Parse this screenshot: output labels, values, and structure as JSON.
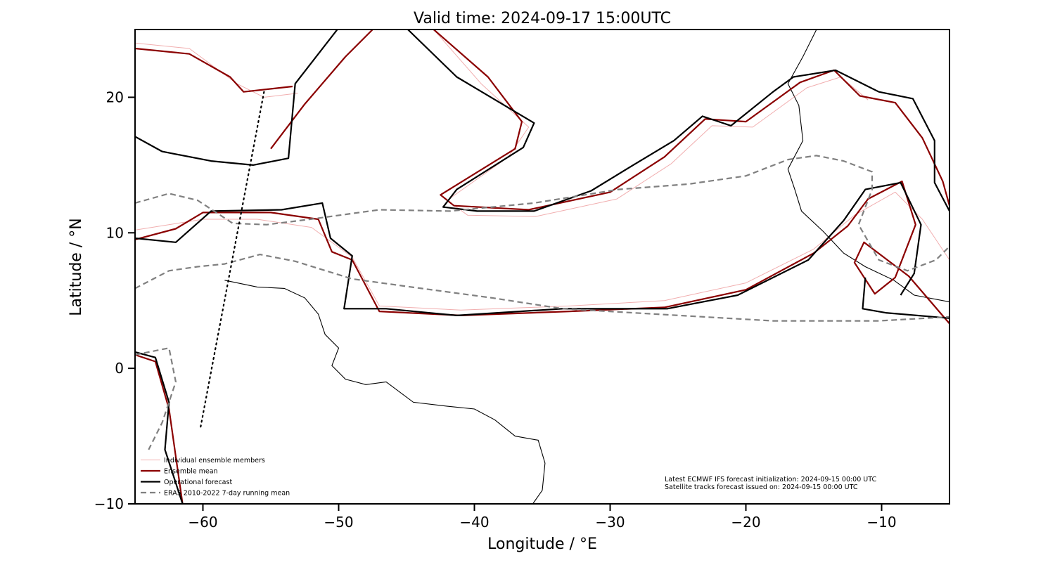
{
  "chart_data": {
    "type": "line",
    "title": "Valid time: 2024-09-17 15:00UTC",
    "x_label": "Longitude / °E",
    "y_label": "Latitude / °N",
    "xlim": [
      -65,
      -5
    ],
    "ylim": [
      -10,
      25
    ],
    "xticks": [
      {
        "value": -60,
        "label": "−60"
      },
      {
        "value": -50,
        "label": "−50"
      },
      {
        "value": -40,
        "label": "−40"
      },
      {
        "value": -30,
        "label": "−30"
      },
      {
        "value": -20,
        "label": "−20"
      },
      {
        "value": -10,
        "label": "−10"
      }
    ],
    "yticks": [
      {
        "value": -10,
        "label": "−10"
      },
      0,
      10,
      20
    ],
    "legend": "lower left",
    "series": [
      {
        "name": "Individual ensemble members",
        "color": "#e8787a",
        "dash": "solid",
        "segments": [
          {
            "x": [
              -65,
              -60,
              -56,
              -52,
              -49,
              -47,
              -41,
              -33,
              -26,
              -20,
              -15,
              -12,
              -9,
              -7,
              -5
            ],
            "y": [
              10.2,
              11.0,
              11.0,
              10.4,
              8.2,
              4.6,
              4.3,
              4.6,
              5.0,
              6.3,
              8.8,
              11.3,
              13.0,
              11.0,
              8.0
            ]
          },
          {
            "x": [
              -43,
              -39.5,
              -36,
              -37.5,
              -42,
              -40.5,
              -35.5,
              -29.5,
              -25.5,
              -22.5,
              -19.5,
              -15.5,
              -13,
              -11
            ],
            "y": [
              25,
              21.0,
              17.8,
              15.6,
              12.4,
              11.3,
              11.2,
              12.5,
              15.1,
              17.9,
              17.8,
              20.7,
              21.5,
              19.8
            ]
          },
          {
            "x": [
              -65,
              -61,
              -57.5,
              -55.5,
              -53
            ],
            "y": [
              24.0,
              23.6,
              21.0,
              20.0,
              20.3
            ]
          }
        ]
      },
      {
        "name": "Ensemble mean",
        "color": "#8b0000",
        "dash": "solid",
        "segments": [
          {
            "x": [
              -65,
              -61,
              -58,
              -57,
              -53.4
            ],
            "y": [
              23.6,
              23.2,
              21.5,
              20.4,
              20.8
            ]
          },
          {
            "x": [
              -55,
              -52.5,
              -49.5,
              -47.5
            ],
            "y": [
              16.2,
              19.5,
              23.0,
              25
            ]
          },
          {
            "x": [
              -43,
              -39,
              -36.5,
              -37,
              -42.5,
              -41.5,
              -36,
              -30,
              -26,
              -23,
              -20,
              -16,
              -13.5,
              -11.6,
              -9,
              -7,
              -5.5,
              -5
            ],
            "y": [
              25,
              21.5,
              18.2,
              16.2,
              12.8,
              12.0,
              11.7,
              13.0,
              15.6,
              18.4,
              18.2,
              21.1,
              22.0,
              20.1,
              19.6,
              17,
              13.8,
              12
            ]
          },
          {
            "x": [
              -65,
              -62,
              -60,
              -55,
              -51.5,
              -50.5,
              -49,
              -47,
              -41,
              -33,
              -26,
              -20,
              -15,
              -12.5,
              -11,
              -8.5,
              -7.5,
              -9,
              -10.5,
              -12,
              -11.3,
              -8,
              -5
            ],
            "y": [
              9.5,
              10.3,
              11.5,
              11.5,
              11.0,
              8.6,
              8.0,
              4.2,
              3.9,
              4.2,
              4.5,
              5.8,
              8.5,
              10.5,
              12.5,
              13.8,
              10.6,
              6.7,
              5.5,
              7.8,
              9.3,
              6.8,
              3.3
            ]
          },
          {
            "x": [
              -65,
              -63.5,
              -62.5,
              -62,
              -61.5
            ],
            "y": [
              1.0,
              0.5,
              -3.0,
              -6.5,
              -10
            ]
          }
        ]
      },
      {
        "name": "Operational forecast",
        "color": "#000000",
        "dash": "solid",
        "segments": [
          {
            "x": [
              -65,
              -63.0,
              -59.4,
              -56.3,
              -53.7,
              -53.2,
              -50.1
            ],
            "y": [
              17.1,
              16.0,
              15.3,
              15.0,
              15.5,
              21.0,
              25
            ]
          },
          {
            "x": [
              -44.9,
              -41.3,
              -35.6,
              -36.4,
              -41.3,
              -42.3,
              -39.8,
              -35.6,
              -31.4,
              -28.3,
              -25.3,
              -23.2,
              -21.1,
              -18.0,
              -16.5,
              -13.4,
              -10.2,
              -7.7,
              -6.1,
              -6.1,
              -5
            ],
            "y": [
              25,
              21.5,
              18.1,
              16.3,
              13.2,
              11.9,
              11.6,
              11.6,
              13.1,
              15.0,
              16.8,
              18.6,
              17.9,
              20.4,
              21.5,
              22.0,
              20.4,
              19.9,
              16.8,
              13.7,
              11.6
            ]
          },
          {
            "x": [
              -65,
              -62.0,
              -59.4,
              -54.2,
              -51.2,
              -50.6,
              -49.0,
              -49.6,
              -46.5,
              -41.3,
              -33.5,
              -25.8,
              -20.6,
              -15.4,
              -12.8,
              -11.2,
              -8.6,
              -7.1,
              -7.6,
              -8.6
            ],
            "y": [
              9.6,
              9.3,
              11.6,
              11.7,
              12.2,
              9.6,
              8.3,
              4.4,
              4.4,
              3.9,
              4.4,
              4.4,
              5.4,
              8.0,
              10.9,
              13.2,
              13.7,
              10.6,
              7.0,
              5.4
            ]
          },
          {
            "x": [
              -11.2,
              -11.4,
              -9.7,
              -5
            ],
            "y": [
              6.7,
              4.4,
              4.1,
              3.7
            ]
          },
          {
            "x": [
              -65,
              -63.5,
              -62.5,
              -62.8,
              -61.5
            ],
            "y": [
              1.2,
              0.8,
              -2.5,
              -6.0,
              -10
            ]
          }
        ]
      },
      {
        "name": "ERA5 2010-2022 7-day running mean",
        "color": "#808080",
        "dash": "dashed",
        "segments": [
          {
            "x": [
              -65,
              -62.5,
              -60.4,
              -57.8,
              -55.3,
              -52.1,
              -47.0,
              -41.8,
              -35.6,
              -29.4,
              -24.2,
              -20.0,
              -16.9,
              -14.8,
              -12.8,
              -10.7,
              -10.7,
              -11.7,
              -10.2,
              -8.1,
              -6.0,
              -5
            ],
            "y": [
              12.2,
              12.9,
              12.4,
              10.7,
              10.6,
              11.0,
              11.7,
              11.6,
              12.2,
              13.2,
              13.6,
              14.2,
              15.4,
              15.7,
              15.3,
              14.5,
              13.2,
              10.6,
              8.0,
              7.2,
              8.0,
              9.0
            ]
          },
          {
            "x": [
              -65,
              -62.5,
              -60.4,
              -58.4,
              -55.8,
              -53.2,
              -49.0,
              -43.9,
              -38.7,
              -33.5,
              -28.3,
              -23.1,
              -18.0,
              -10.2,
              -5
            ],
            "y": [
              5.9,
              7.2,
              7.5,
              7.7,
              8.4,
              7.9,
              6.6,
              5.9,
              5.2,
              4.4,
              4.1,
              3.8,
              3.5,
              3.5,
              3.8
            ]
          },
          {
            "x": [
              -65,
              -62.5,
              -62.0,
              -63.0,
              -64.0
            ],
            "y": [
              1.0,
              1.5,
              -1.0,
              -4.0,
              -6.0
            ]
          }
        ]
      }
    ],
    "track": {
      "color": "#000000",
      "x": [
        -55.5,
        -60.2
      ],
      "y": [
        20.4,
        -4.5
      ]
    },
    "coastline": {
      "color": "#000000",
      "segments": [
        {
          "x": [
            -58.4,
            -56,
            -54,
            -52.5,
            -51.5,
            -51,
            -50,
            -50.5,
            -49.5,
            -48,
            -46.5,
            -44.5,
            -42,
            -40,
            -38.5,
            -37,
            -35.3,
            -34.8,
            -35,
            -35.7
          ],
          "y": [
            6.5,
            6.0,
            5.9,
            5.2,
            4.0,
            2.5,
            1.5,
            0.2,
            -0.8,
            -1.2,
            -1.0,
            -2.5,
            -2.8,
            -3.0,
            -3.8,
            -5.0,
            -5.3,
            -7.0,
            -9.0,
            -10
          ]
        },
        {
          "x": [
            -14.8,
            -15.8,
            -16.9,
            -16.1,
            -15.8,
            -16.9,
            -16.4,
            -15.9,
            -14.3,
            -12.8,
            -11.2,
            -9.1,
            -7.6,
            -5
          ],
          "y": [
            25,
            23.0,
            21.0,
            19.4,
            16.8,
            14.7,
            13.2,
            11.6,
            10.1,
            8.5,
            7.5,
            6.5,
            5.4,
            4.9
          ]
        }
      ]
    },
    "annotations": [
      "Latest ECMWF IFS forecast initialization: 2024-09-15 00:00 UTC",
      "Satellite tracks forecast issued on: 2024-09-15 00:00 UTC"
    ]
  }
}
